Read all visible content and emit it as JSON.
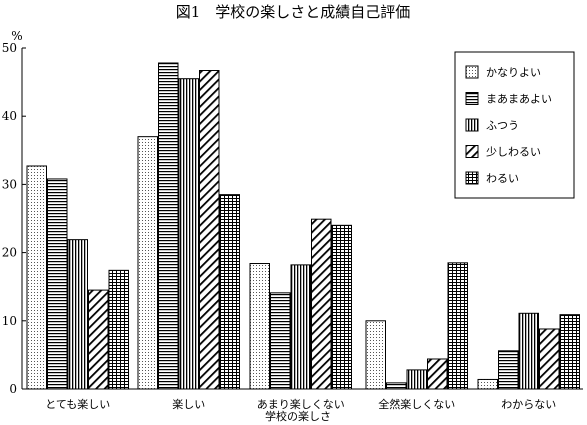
{
  "chart_data": {
    "type": "bar",
    "title": "図1　学校の楽しさと成績自己評価",
    "ylabel": "%",
    "xlabel": "学校の楽しさ",
    "ylim": [
      0,
      50
    ],
    "yticks": [
      0,
      10,
      20,
      30,
      40,
      50
    ],
    "grid": false,
    "legend_position": "top-right",
    "categories": [
      "とても楽しい",
      "楽しい",
      "あまり楽しくない",
      "全然楽しくない",
      "わからない"
    ],
    "series": [
      {
        "name": "かなりよい",
        "pattern": "dots",
        "values": [
          32.7,
          37.0,
          18.4,
          10.0,
          1.4
        ]
      },
      {
        "name": "まあまあよい",
        "pattern": "hlines",
        "values": [
          30.8,
          47.8,
          14.1,
          0.9,
          5.6
        ]
      },
      {
        "name": "ふつう",
        "pattern": "vlines",
        "values": [
          21.9,
          45.5,
          18.2,
          2.8,
          11.1
        ]
      },
      {
        "name": "少しわるい",
        "pattern": "diag",
        "values": [
          14.5,
          46.7,
          24.9,
          4.4,
          8.8
        ]
      },
      {
        "name": "わるい",
        "pattern": "grid",
        "values": [
          17.4,
          28.5,
          24.0,
          18.5,
          10.9
        ]
      }
    ]
  }
}
